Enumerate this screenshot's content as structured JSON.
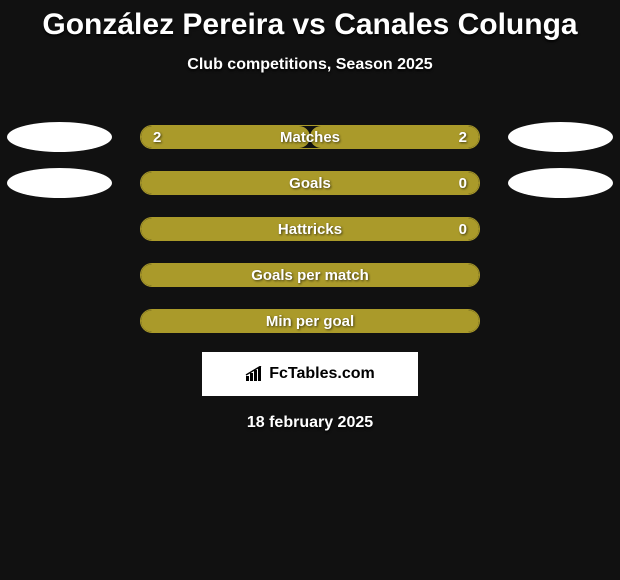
{
  "title": "González Pereira vs Canales Colunga",
  "subtitle": "Club competitions, Season 2025",
  "date": "18 february 2025",
  "brand": "FcTables.com",
  "colors": {
    "background": "#111111",
    "bar_fill": "#aa9a2a",
    "bar_border": "#aa9a2a",
    "text": "#ffffff",
    "ellipse": "#ffffff",
    "brand_bg": "#ffffff",
    "brand_text": "#000000"
  },
  "stats": [
    {
      "label": "Matches",
      "left_value": "2",
      "right_value": "2",
      "left_pct": 50,
      "right_pct": 50,
      "show_left_ellipse": true,
      "show_right_ellipse": true
    },
    {
      "label": "Goals",
      "left_value": "",
      "right_value": "0",
      "left_pct": 100,
      "right_pct": 0,
      "show_left_ellipse": true,
      "show_right_ellipse": true
    },
    {
      "label": "Hattricks",
      "left_value": "",
      "right_value": "0",
      "left_pct": 100,
      "right_pct": 0,
      "show_left_ellipse": false,
      "show_right_ellipse": false
    },
    {
      "label": "Goals per match",
      "left_value": "",
      "right_value": "",
      "left_pct": 100,
      "right_pct": 0,
      "show_left_ellipse": false,
      "show_right_ellipse": false
    },
    {
      "label": "Min per goal",
      "left_value": "",
      "right_value": "",
      "left_pct": 100,
      "right_pct": 0,
      "show_left_ellipse": false,
      "show_right_ellipse": false
    }
  ]
}
